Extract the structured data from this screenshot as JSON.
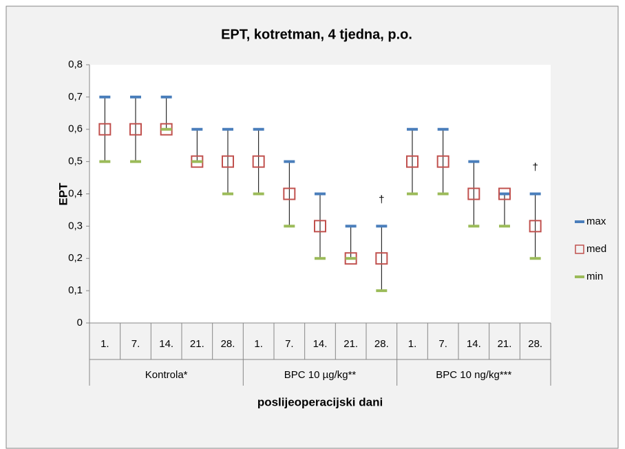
{
  "chart_data": {
    "type": "high-low",
    "title": "EPT, kotretman, 4 tjedna, p.o.",
    "y_label": "EPT",
    "x_label": "poslijeoperacijski  dani",
    "groups": [
      {
        "name": "Kontrola*",
        "categories": [
          "1.",
          "7.",
          "14.",
          "21.",
          "28."
        ]
      },
      {
        "name": "BPC 10 µg/kg**",
        "categories": [
          "1.",
          "7.",
          "14.",
          "21.",
          "28."
        ]
      },
      {
        "name": "BPC 10 ng/kg***",
        "categories": [
          "1.",
          "7.",
          "14.",
          "21.",
          "28."
        ]
      }
    ],
    "series": [
      {
        "name": "max",
        "color": "#4a7ebb",
        "marker": "dash",
        "values": [
          0.7,
          0.7,
          0.7,
          0.6,
          0.6,
          0.6,
          0.5,
          0.4,
          0.3,
          0.3,
          0.6,
          0.6,
          0.5,
          0.4,
          0.4
        ]
      },
      {
        "name": "med",
        "color": "#c0504d",
        "marker": "square",
        "values": [
          0.6,
          0.6,
          0.6,
          0.5,
          0.5,
          0.5,
          0.4,
          0.3,
          0.2,
          0.2,
          0.5,
          0.5,
          0.4,
          0.4,
          0.3
        ]
      },
      {
        "name": "min",
        "color": "#9bbb59",
        "marker": "dash",
        "values": [
          0.5,
          0.5,
          0.6,
          0.5,
          0.4,
          0.4,
          0.3,
          0.2,
          0.2,
          0.1,
          0.4,
          0.4,
          0.3,
          0.3,
          0.2
        ]
      }
    ],
    "annotations": [
      {
        "text": "†",
        "group": "BPC 10 µg/kg**",
        "category": "28."
      },
      {
        "text": "†",
        "group": "BPC 10 ng/kg***",
        "category": "28."
      }
    ],
    "ylim": [
      0,
      0.8
    ],
    "yticks": [
      0,
      {
        "value": 0.1,
        "label": "0,1"
      },
      {
        "value": 0.2,
        "label": "0,2"
      },
      {
        "value": 0.3,
        "label": "0,3"
      },
      {
        "value": 0.4,
        "label": "0,4"
      },
      {
        "value": 0.5,
        "label": "0,5"
      },
      {
        "value": 0.6,
        "label": "0,6"
      },
      {
        "value": 0.7,
        "label": "0,7"
      },
      {
        "value": 0.8,
        "label": "0,8"
      }
    ],
    "legend": "right"
  }
}
